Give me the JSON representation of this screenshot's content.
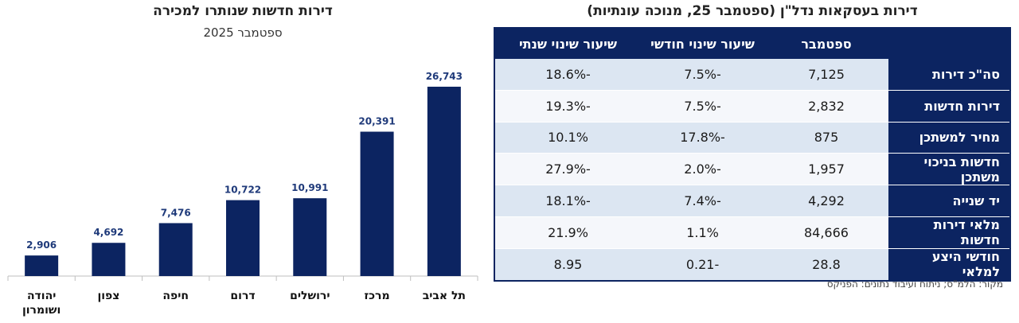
{
  "chart_data": {
    "type": "bar",
    "title": "דירות חדשות שנותרו למכירה",
    "subtitle": "ספטמבר 2025",
    "categories": [
      "יהודה ושומרון",
      "צפון",
      "חיפה",
      "דרום",
      "ירושלים",
      "מרכז",
      "תל אביב"
    ],
    "category_lines": [
      [
        "יהודה",
        "ושומרון"
      ],
      [
        "צפון"
      ],
      [
        "חיפה"
      ],
      [
        "דרום"
      ],
      [
        "ירושלים"
      ],
      [
        "מרכז"
      ],
      [
        "תל אביב"
      ]
    ],
    "values": [
      2906,
      4692,
      7476,
      10722,
      10991,
      20391,
      26743
    ],
    "value_labels": [
      "2,906",
      "4,692",
      "7,476",
      "10,722",
      "10,991",
      "20,391",
      "26,743"
    ],
    "xlabel": "",
    "ylabel": "",
    "ylim": [
      0,
      30000
    ],
    "grid": false,
    "bar_color": "#0c2461"
  },
  "table": {
    "title": "דירות בעסקאות נדל\"ן (ספטמבר 25, מנוכה עונתיות)",
    "headers": [
      "",
      "ספטמבר",
      "שיעור שינוי חודשי",
      "שיעור שינוי שנתי"
    ],
    "rows": [
      {
        "label": "סה\"כ דירות",
        "september": "7,125",
        "monthly": "-7.5%",
        "annual": "-18.6%"
      },
      {
        "label": "דירות חדשות",
        "september": "2,832",
        "monthly": "-7.5%",
        "annual": "-19.3%"
      },
      {
        "label": "מחיר למשתכן",
        "september": "875",
        "monthly": "-17.8%",
        "annual": "10.1%"
      },
      {
        "label": "חדשות בניכוי משתכן",
        "september": "1,957",
        "monthly": "-2.0%",
        "annual": "-27.9%"
      },
      {
        "label": "יד שנייה",
        "september": "4,292",
        "monthly": "-7.4%",
        "annual": "-18.1%"
      },
      {
        "label": "מלאי דירות חדשות",
        "september": "84,666",
        "monthly": "1.1%",
        "annual": "21.9%"
      },
      {
        "label": "חודשי היצע למלאי",
        "september": "28.8",
        "monthly": "-0.21",
        "annual": "8.95"
      }
    ],
    "source": "מקור: הלמ\"ס; ניתוח ועיבוד נתונים: הפניקס",
    "header_color": "#0c2461"
  }
}
